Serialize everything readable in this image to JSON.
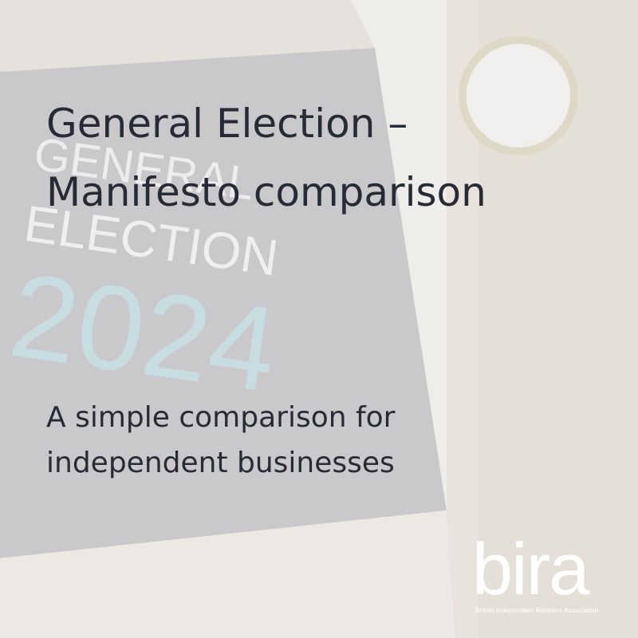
{
  "background_sign": {
    "lines": [
      "GENERAL",
      "ELECTION",
      "2024"
    ]
  },
  "header": {
    "title_lines": [
      "General Election –",
      "Manifesto comparison"
    ],
    "subtitle_lines": [
      "A simple comparison for",
      "independent businesses"
    ]
  },
  "logo": {
    "name": "bira",
    "tagline": "British Independent Retailers Association"
  }
}
